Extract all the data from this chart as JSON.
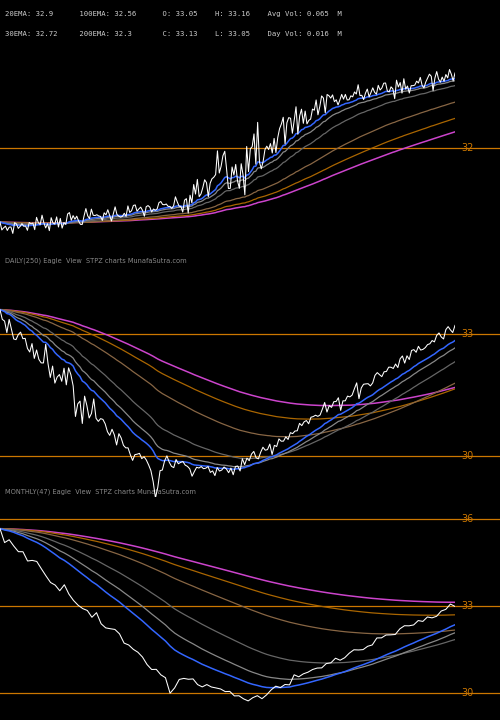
{
  "background_color": "#000000",
  "text_color": "#cccccc",
  "hline_color": "#cc7700",
  "header_line1": "20EMA: 32.9      100EMA: 32.56      O: 33.05    H: 33.16    Avg Vol: 0.065  M",
  "header_line2": "30EMA: 32.72     200EMA: 32.3       C: 33.13    L: 33.05    Day Vol: 0.016  M",
  "title_daily": "DAILY(250) Eagle  View  STPZ charts MunafaSutra.com",
  "title_monthly1": "MONTHLY(47) Eagle  View  STPZ charts MunafaSutra.com",
  "panel1_hlines": [
    32.0
  ],
  "panel1_hlabels": [
    "32"
  ],
  "panel2_hlines": [
    36.0,
    33.0,
    30.0
  ],
  "panel2_hlabels": [
    "36",
    "33",
    "30"
  ],
  "panel3_hlines": [
    36.0,
    33.0,
    30.0
  ],
  "panel3_hlabels": [
    "36",
    "33",
    "30"
  ],
  "color_blue": "#3366ff",
  "color_gray1": "#999999",
  "color_gray2": "#777777",
  "color_orange": "#aa6600",
  "color_magenta": "#cc44cc",
  "color_white": "#ffffff"
}
